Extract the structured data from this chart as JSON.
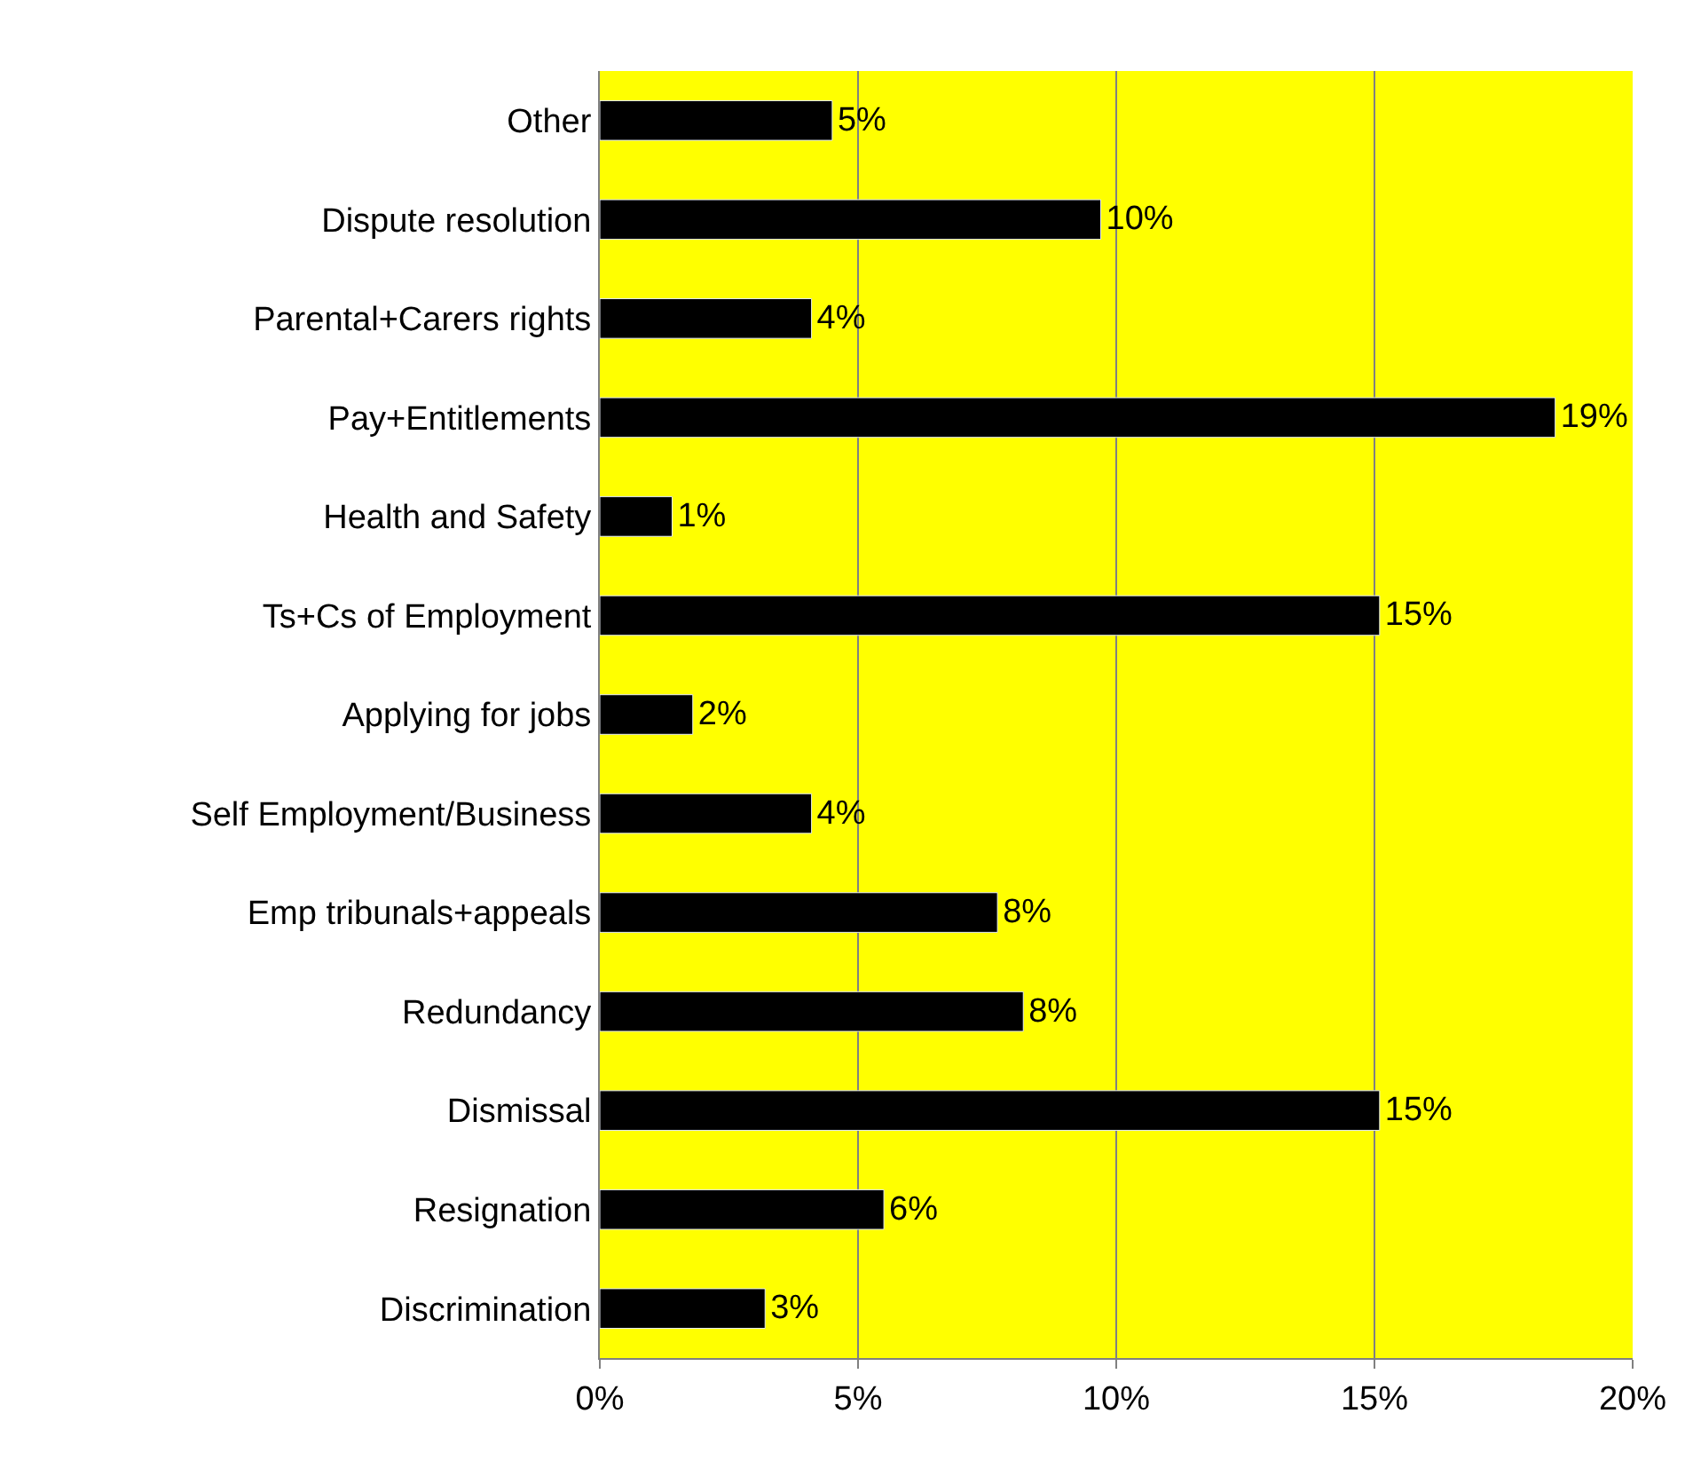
{
  "chart_data": {
    "type": "bar",
    "orientation": "horizontal",
    "categories": [
      "Other",
      "Dispute resolution",
      "Parental+Carers rights",
      "Pay+Entitlements",
      "Health and Safety",
      "Ts+Cs of Employment",
      "Applying for jobs",
      "Self Employment/Business",
      "Emp tribunals+appeals",
      "Redundancy",
      "Dismissal",
      "Resignation",
      "Discrimination"
    ],
    "values": [
      4.5,
      9.7,
      4.1,
      18.5,
      1.4,
      15.1,
      1.8,
      4.1,
      7.7,
      8.2,
      15.1,
      5.5,
      3.2
    ],
    "value_labels": [
      "5%",
      "10%",
      "4%",
      "19%",
      "1%",
      "15%",
      "2%",
      "4%",
      "8%",
      "8%",
      "15%",
      "6%",
      "3%"
    ],
    "color": "#000000",
    "xlim": [
      0,
      20
    ],
    "xticks": [
      {
        "value": 0,
        "label": "0%"
      },
      {
        "value": 5,
        "label": "5%"
      },
      {
        "value": 10,
        "label": "10%"
      },
      {
        "value": 15,
        "label": "15%"
      },
      {
        "value": 20,
        "label": "20%"
      }
    ],
    "grid": "x",
    "legend": false
  }
}
